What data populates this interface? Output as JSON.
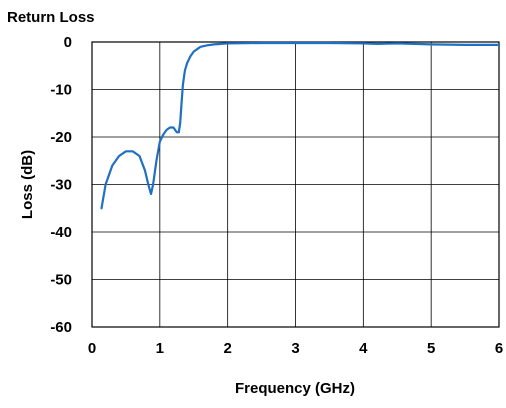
{
  "chart_data": {
    "type": "line",
    "title": "Return Loss",
    "xlabel": "Frequency (GHz)",
    "ylabel": "Loss (dB)",
    "xlim": [
      0,
      6
    ],
    "ylim": [
      -60,
      0
    ],
    "x_ticks": [
      "0",
      "1",
      "2",
      "3",
      "4",
      "5",
      "6"
    ],
    "y_ticks": [
      "0",
      "-10",
      "-20",
      "-30",
      "-40",
      "-50",
      "-60"
    ],
    "grid": true,
    "legend": "none",
    "series": [
      {
        "color": "#1f6fc5",
        "x": [
          0.14,
          0.2,
          0.3,
          0.4,
          0.5,
          0.6,
          0.7,
          0.78,
          0.83,
          0.87,
          0.9,
          0.95,
          1.0,
          1.05,
          1.1,
          1.15,
          1.2,
          1.25,
          1.28,
          1.3,
          1.32,
          1.34,
          1.37,
          1.4,
          1.45,
          1.5,
          1.6,
          1.7,
          1.8,
          2.0,
          2.5,
          3.0,
          3.5,
          4.0,
          4.2,
          4.5,
          5.0,
          5.5,
          6.0
        ],
        "y": [
          -35,
          -30,
          -26,
          -24,
          -23,
          -23,
          -24,
          -27,
          -30,
          -32,
          -30,
          -25,
          -21,
          -19.5,
          -18.5,
          -18,
          -18,
          -19,
          -19,
          -17,
          -13,
          -9,
          -6,
          -4.5,
          -3,
          -2,
          -1,
          -0.7,
          -0.5,
          -0.3,
          -0.2,
          -0.2,
          -0.2,
          -0.3,
          -0.4,
          -0.3,
          -0.5,
          -0.6,
          -0.6
        ]
      }
    ]
  }
}
